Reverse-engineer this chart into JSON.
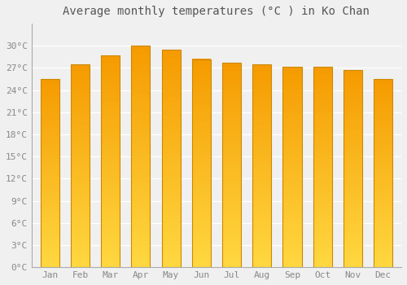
{
  "months": [
    "Jan",
    "Feb",
    "Mar",
    "Apr",
    "May",
    "Jun",
    "Jul",
    "Aug",
    "Sep",
    "Oct",
    "Nov",
    "Dec"
  ],
  "values": [
    25.5,
    27.5,
    28.7,
    30.0,
    29.5,
    28.2,
    27.7,
    27.5,
    27.2,
    27.2,
    26.7,
    25.5
  ],
  "bar_color_main": "#F5B800",
  "bar_color_top": "#F59B00",
  "bar_color_left_edge": "#D4851A",
  "title": "Average monthly temperatures (°C ) in Ko Chan",
  "ylim": [
    0,
    33
  ],
  "ytick_step": 3,
  "background_color": "#f0f0f0",
  "grid_color": "#ffffff",
  "title_fontsize": 10,
  "tick_fontsize": 8,
  "bar_edge_color": "#CC8800"
}
